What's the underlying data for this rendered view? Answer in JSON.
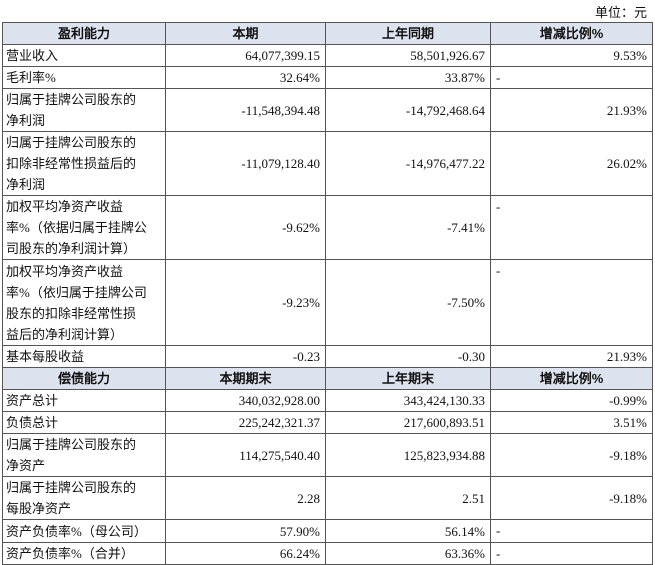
{
  "unit": "单位：元",
  "sections": [
    {
      "header": [
        "盈利能力",
        "本期",
        "上年同期",
        "增减比例%"
      ],
      "rows": [
        {
          "label": [
            "营业收入"
          ],
          "cells": [
            "64,077,399.15",
            "58,501,926.67",
            "9.53%"
          ]
        },
        {
          "label": [
            "毛利率%"
          ],
          "cells": [
            "32.64%",
            "33.87%",
            "-"
          ]
        },
        {
          "label": [
            "归属于挂牌公司股东的",
            "净利润"
          ],
          "cells": [
            "-11,548,394.48",
            "-14,792,468.64",
            "21.93%"
          ]
        },
        {
          "label": [
            "归属于挂牌公司股东的",
            "扣除非经常性损益后的",
            "净利润"
          ],
          "cells": [
            "-11,079,128.40",
            "-14,976,477.22",
            "26.02%"
          ]
        },
        {
          "label": [
            "加权平均净资产收益",
            "率%（依据归属于挂牌公",
            "司股东的净利润计算）"
          ],
          "cells": [
            "-9.62%",
            "-7.41%",
            "-"
          ]
        },
        {
          "label": [
            "加权平均净资产收益",
            "率%（依归属于挂牌公司",
            "股东的扣除非经常性损",
            "益后的净利润计算）"
          ],
          "cells": [
            "-9.23%",
            "-7.50%",
            "-"
          ]
        },
        {
          "label": [
            "基本每股收益"
          ],
          "cells": [
            "-0.23",
            "-0.30",
            "21.93%"
          ]
        }
      ]
    },
    {
      "header": [
        "偿债能力",
        "本期期末",
        "上年期末",
        "增减比例%"
      ],
      "rows": [
        {
          "label": [
            "资产总计"
          ],
          "cells": [
            "340,032,928.00",
            "343,424,130.33",
            "-0.99%"
          ]
        },
        {
          "label": [
            "负债总计"
          ],
          "cells": [
            "225,242,321.37",
            "217,600,893.51",
            "3.51%"
          ]
        },
        {
          "label": [
            "归属于挂牌公司股东的",
            "净资产"
          ],
          "cells": [
            "114,275,540.40",
            "125,823,934.88",
            "-9.18%"
          ]
        },
        {
          "label": [
            "归属于挂牌公司股东的",
            "每股净资产"
          ],
          "cells": [
            "2.28",
            "2.51",
            "-9.18%"
          ]
        },
        {
          "label": [
            "资产负债率%（母公司）"
          ],
          "cells": [
            "57.90%",
            "56.14%",
            "-"
          ]
        },
        {
          "label": [
            "资产负债率%（合并）"
          ],
          "cells": [
            "66.24%",
            "63.36%",
            "-"
          ]
        }
      ]
    }
  ]
}
